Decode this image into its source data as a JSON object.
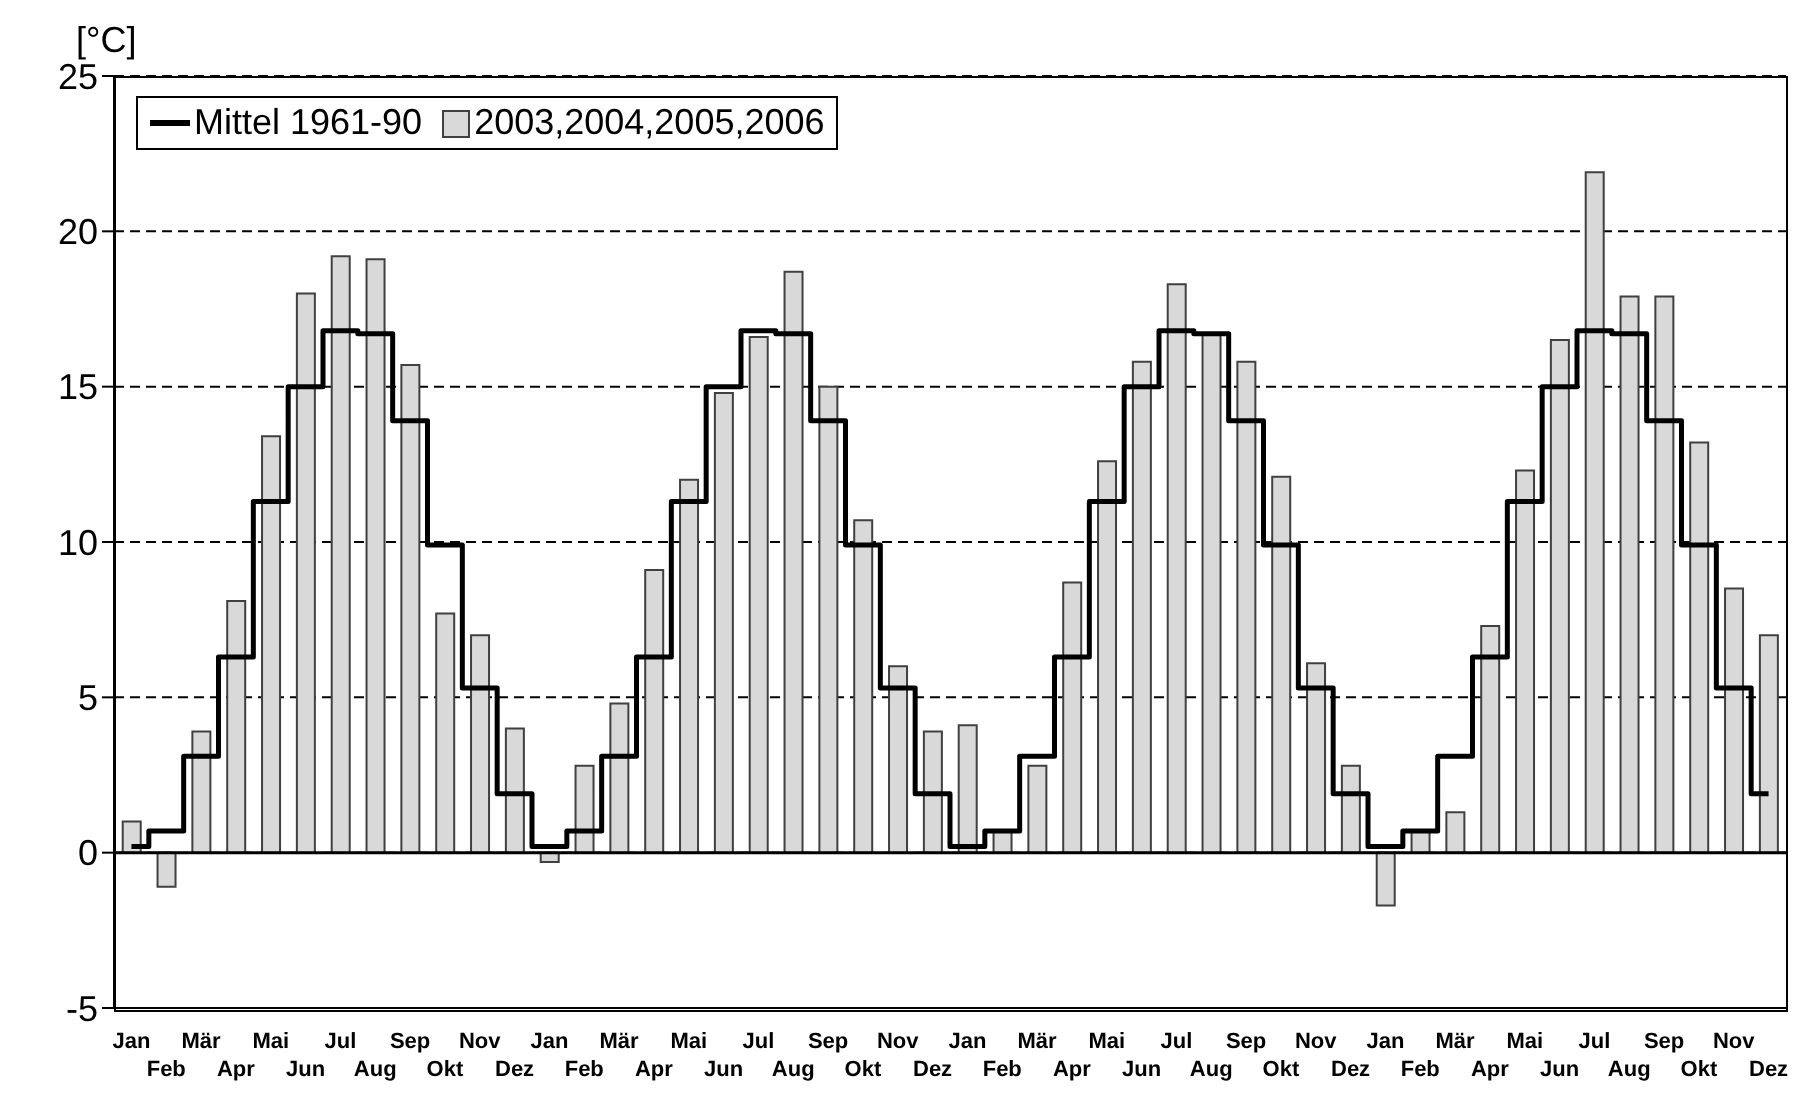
{
  "chart_data": {
    "type": "bar",
    "ylabel": "[°C]",
    "categories": [
      "Jan",
      "Feb",
      "Mär",
      "Apr",
      "Mai",
      "Jun",
      "Jul",
      "Aug",
      "Sep",
      "Okt",
      "Nov",
      "Dez",
      "Jan",
      "Feb",
      "Mär",
      "Apr",
      "Mai",
      "Jun",
      "Jul",
      "Aug",
      "Sep",
      "Okt",
      "Nov",
      "Dez",
      "Jan",
      "Feb",
      "Mär",
      "Apr",
      "Mai",
      "Jun",
      "Jul",
      "Aug",
      "Sep",
      "Okt",
      "Nov",
      "Dez",
      "Jan",
      "Feb",
      "Mär",
      "Apr",
      "Mai",
      "Jun",
      "Jul",
      "Aug",
      "Sep",
      "Okt",
      "Nov",
      "Dez"
    ],
    "series": [
      {
        "name": "Mittel 1961-90",
        "type": "step",
        "color": "#000000",
        "values": [
          0.2,
          0.7,
          3.1,
          6.3,
          11.3,
          15.0,
          16.8,
          16.7,
          13.9,
          9.9,
          5.3,
          1.9,
          0.2,
          0.7,
          3.1,
          6.3,
          11.3,
          15.0,
          16.8,
          16.7,
          13.9,
          9.9,
          5.3,
          1.9,
          0.2,
          0.7,
          3.1,
          6.3,
          11.3,
          15.0,
          16.8,
          16.7,
          13.9,
          9.9,
          5.3,
          1.9,
          0.2,
          0.7,
          3.1,
          6.3,
          11.3,
          15.0,
          16.8,
          16.7,
          13.9,
          9.9,
          5.3,
          1.9
        ]
      },
      {
        "name": "2003,2004,2005,2006",
        "type": "bar",
        "color": "#d9d9d9",
        "values": [
          1.0,
          -1.1,
          3.9,
          8.1,
          13.4,
          18.0,
          19.2,
          19.1,
          15.7,
          7.7,
          7.0,
          4.0,
          -0.3,
          2.8,
          4.8,
          9.1,
          12.0,
          14.8,
          16.6,
          18.7,
          15.0,
          10.7,
          6.0,
          3.9,
          4.1,
          0.7,
          2.8,
          8.7,
          12.6,
          15.8,
          18.3,
          16.7,
          15.8,
          12.1,
          6.1,
          2.8,
          -1.7,
          0.7,
          1.3,
          7.3,
          12.3,
          16.5,
          21.9,
          17.9,
          17.9,
          13.2,
          8.5,
          7.0
        ]
      }
    ],
    "ylim": [
      -5,
      25
    ],
    "yticks": [
      -5,
      0,
      5,
      10,
      15,
      20,
      25
    ],
    "grid": "y",
    "legend": "top left"
  }
}
